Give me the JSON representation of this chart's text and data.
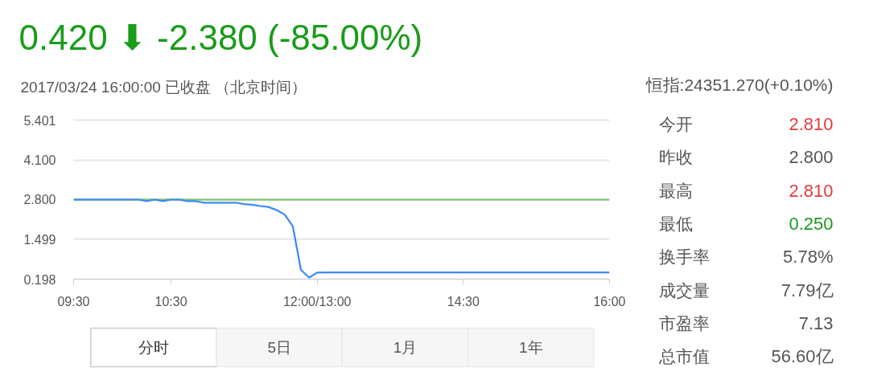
{
  "chart_data": [
    {
      "type": "line",
      "title": "0.420 ⬇ -2.380 (-85.00%)",
      "subtitle": "2017/03/24 16:00:00 已收盘 （北京时间）",
      "categories": [
        "09:30",
        null,
        null,
        null,
        null,
        null,
        null,
        null,
        null,
        null,
        null,
        null,
        "10:30",
        null,
        null,
        null,
        null,
        null,
        null,
        null,
        null,
        null,
        null,
        null,
        null,
        null,
        null,
        null,
        null,
        null,
        "12:00/13:00",
        null,
        null,
        null,
        null,
        null,
        null,
        null,
        null,
        null,
        null,
        null,
        null,
        null,
        null,
        null,
        null,
        null,
        "14:30",
        null,
        null,
        null,
        null,
        null,
        null,
        null,
        null,
        null,
        null,
        null,
        null,
        null,
        null,
        null,
        null,
        null,
        "16:00"
      ],
      "series": [
        {
          "color": "#3b89f5",
          "values": [
            2.8,
            2.8,
            2.8,
            2.8,
            2.8,
            2.8,
            2.8,
            2.8,
            2.8,
            2.75,
            2.8,
            2.75,
            2.8,
            2.8,
            2.75,
            2.75,
            2.7,
            2.7,
            2.7,
            2.7,
            2.7,
            2.65,
            2.63,
            2.59,
            2.56,
            2.46,
            2.31,
            1.92,
            0.5,
            0.25,
            0.41,
            0.42,
            0.42,
            0.42,
            0.42,
            0.42,
            0.42,
            0.42,
            0.42,
            0.42,
            0.42,
            0.42,
            0.42,
            0.42,
            0.42,
            0.42,
            0.42,
            0.42,
            0.42,
            0.42,
            0.42,
            0.42,
            0.42,
            0.42,
            0.42,
            0.42,
            0.42,
            0.42,
            0.42,
            0.42,
            0.42,
            0.42,
            0.42,
            0.42,
            0.42,
            0.42,
            0.42
          ]
        }
      ],
      "ylim": [
        0.198,
        5.401
      ],
      "yticks": [
        0.198,
        1.499,
        {
          "value": 2.8,
          "label": "2.800"
        },
        {
          "value": 4.1,
          "label": "4.100"
        },
        5.401
      ],
      "ref_lines": [
        {
          "axis": "y",
          "value": 2.8,
          "color": "#88c77c"
        }
      ],
      "grid": "y",
      "annotations": [
        "分时",
        "5日",
        "1月",
        "1年"
      ]
    },
    {
      "type": "other",
      "title": "恒指:24351.270(+0.10%)",
      "categories": [
        "今开",
        "昨收",
        "最高",
        "最低",
        "换手率",
        "成交量",
        "市盈率",
        "总市值"
      ],
      "value_labels": [
        "2.810",
        "2.800",
        "2.810",
        "0.250",
        "5.78%",
        "7.79亿",
        "7.13",
        "56.60亿"
      ]
    }
  ]
}
